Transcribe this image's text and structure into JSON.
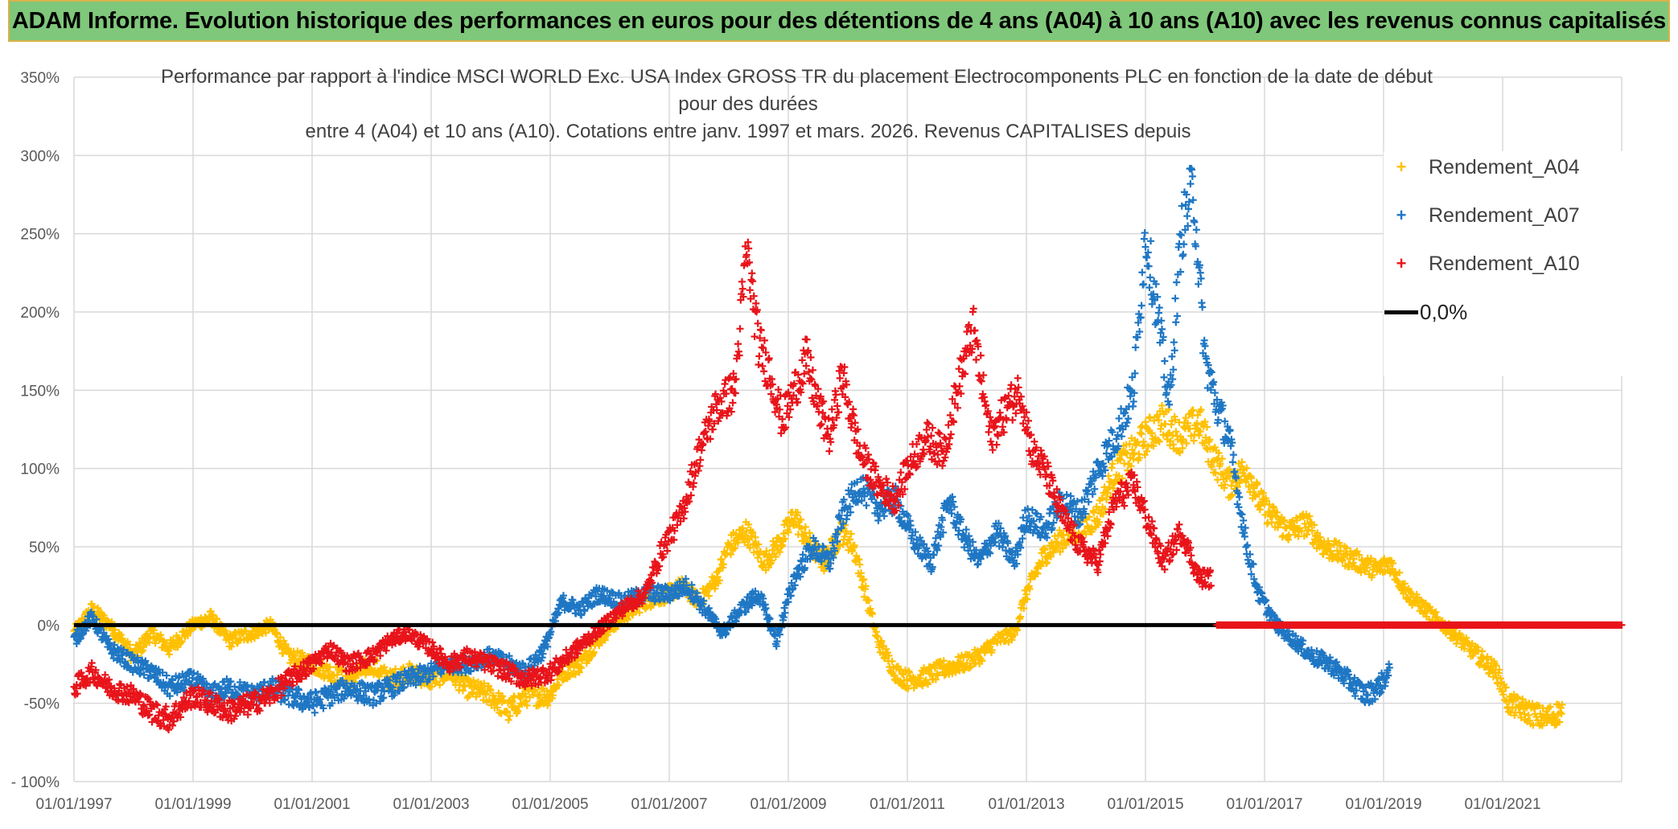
{
  "banner": {
    "title": "ADAM Informe. Evolution historique des performances en euros pour des détentions de 4 ans (A04) à 10 ans (A10) avec les revenus connus capitalisés"
  },
  "colors": {
    "banner_bg": "#7fc77a",
    "banner_border": "#d9b24a",
    "A04": "#ffc000",
    "A07": "#1f77c4",
    "A10": "#e8141a",
    "zero_line": "#000000",
    "grid": "#d9d9d9"
  },
  "chart_data": {
    "type": "scatter",
    "title_lines": [
      "Performance par rapport à l'indice MSCI WORLD Exc. USA Index GROSS TR  du placement Electrocomponents PLC en fonction de la date de début",
      "pour des durées",
      "entre 4 (A04) et 10 ans (A10). Cotations entre janv. 1997 et mars. 2026. Revenus CAPITALISES depuis"
    ],
    "xlabel": "",
    "ylabel": "",
    "xlim": [
      1997.0,
      2023.0
    ],
    "ylim": [
      -100,
      350
    ],
    "y_ticks": [
      -100,
      -50,
      0,
      50,
      100,
      150,
      200,
      250,
      300,
      350
    ],
    "y_tick_labels": [
      "- 100%",
      "-50%",
      "0%",
      "50%",
      "100%",
      "150%",
      "200%",
      "250%",
      "300%",
      "350%"
    ],
    "x_ticks": [
      1997,
      1999,
      2001,
      2003,
      2005,
      2007,
      2009,
      2011,
      2013,
      2015,
      2017,
      2019,
      2021
    ],
    "x_tick_labels": [
      "01/01/1997",
      "01/01/1999",
      "01/01/2001",
      "01/01/2003",
      "01/01/2005",
      "01/01/2007",
      "01/01/2009",
      "01/01/2011",
      "01/01/2013",
      "01/01/2015",
      "01/01/2017",
      "01/01/2019",
      "01/01/2021"
    ],
    "grid": true,
    "legend_position": "top-right",
    "series": [
      {
        "name": "Rendement_A04",
        "marker": "+",
        "points": [
          [
            1997.0,
            -5
          ],
          [
            1997.3,
            10
          ],
          [
            1997.6,
            0
          ],
          [
            1998.0,
            -20
          ],
          [
            1998.3,
            -5
          ],
          [
            1998.6,
            -15
          ],
          [
            1999.0,
            0
          ],
          [
            1999.3,
            5
          ],
          [
            1999.6,
            -10
          ],
          [
            2000.0,
            -5
          ],
          [
            2000.3,
            0
          ],
          [
            2000.6,
            -20
          ],
          [
            2001.0,
            -25
          ],
          [
            2001.3,
            -30
          ],
          [
            2001.6,
            -35
          ],
          [
            2002.0,
            -25
          ],
          [
            2002.3,
            -35
          ],
          [
            2002.6,
            -30
          ],
          [
            2003.0,
            -35
          ],
          [
            2003.3,
            -30
          ],
          [
            2003.6,
            -40
          ],
          [
            2004.0,
            -45
          ],
          [
            2004.3,
            -55
          ],
          [
            2004.6,
            -45
          ],
          [
            2005.0,
            -45
          ],
          [
            2005.2,
            -30
          ],
          [
            2005.5,
            -25
          ],
          [
            2005.8,
            -10
          ],
          [
            2006.2,
            5
          ],
          [
            2006.6,
            15
          ],
          [
            2007.0,
            20
          ],
          [
            2007.2,
            25
          ],
          [
            2007.5,
            15
          ],
          [
            2007.8,
            30
          ],
          [
            2008.0,
            50
          ],
          [
            2008.3,
            60
          ],
          [
            2008.6,
            40
          ],
          [
            2008.9,
            55
          ],
          [
            2009.1,
            70
          ],
          [
            2009.3,
            55
          ],
          [
            2009.6,
            40
          ],
          [
            2009.9,
            60
          ],
          [
            2010.1,
            50
          ],
          [
            2010.3,
            20
          ],
          [
            2010.5,
            -10
          ],
          [
            2010.8,
            -30
          ],
          [
            2011.0,
            -35
          ],
          [
            2011.3,
            -33
          ],
          [
            2011.6,
            -28
          ],
          [
            2011.9,
            -25
          ],
          [
            2012.2,
            -20
          ],
          [
            2012.5,
            -10
          ],
          [
            2012.8,
            -5
          ],
          [
            2013.0,
            20
          ],
          [
            2013.3,
            45
          ],
          [
            2013.6,
            55
          ],
          [
            2013.9,
            60
          ],
          [
            2014.2,
            70
          ],
          [
            2014.5,
            100
          ],
          [
            2014.8,
            110
          ],
          [
            2015.0,
            120
          ],
          [
            2015.3,
            130
          ],
          [
            2015.6,
            120
          ],
          [
            2015.9,
            130
          ],
          [
            2016.1,
            110
          ],
          [
            2016.4,
            90
          ],
          [
            2016.7,
            100
          ],
          [
            2016.9,
            80
          ],
          [
            2017.1,
            70
          ],
          [
            2017.4,
            60
          ],
          [
            2017.7,
            65
          ],
          [
            2018.0,
            50
          ],
          [
            2018.3,
            45
          ],
          [
            2018.6,
            40
          ],
          [
            2018.9,
            35
          ],
          [
            2019.1,
            40
          ],
          [
            2019.4,
            20
          ],
          [
            2019.7,
            10
          ],
          [
            2020.0,
            0
          ],
          [
            2020.3,
            -10
          ],
          [
            2020.6,
            -20
          ],
          [
            2020.9,
            -30
          ],
          [
            2021.1,
            -50
          ],
          [
            2021.4,
            -55
          ],
          [
            2021.7,
            -60
          ],
          [
            2022.0,
            -55
          ]
        ]
      },
      {
        "name": "Rendement_A07",
        "marker": "+",
        "points": [
          [
            1997.0,
            -10
          ],
          [
            1997.3,
            5
          ],
          [
            1997.6,
            -15
          ],
          [
            1998.0,
            -25
          ],
          [
            1998.3,
            -30
          ],
          [
            1998.6,
            -40
          ],
          [
            1999.0,
            -35
          ],
          [
            1999.3,
            -45
          ],
          [
            1999.6,
            -40
          ],
          [
            2000.0,
            -45
          ],
          [
            2000.3,
            -40
          ],
          [
            2000.6,
            -45
          ],
          [
            2001.0,
            -50
          ],
          [
            2001.3,
            -45
          ],
          [
            2001.6,
            -40
          ],
          [
            2002.0,
            -45
          ],
          [
            2002.3,
            -40
          ],
          [
            2002.6,
            -35
          ],
          [
            2003.0,
            -30
          ],
          [
            2003.3,
            -25
          ],
          [
            2003.6,
            -25
          ],
          [
            2004.0,
            -20
          ],
          [
            2004.3,
            -25
          ],
          [
            2004.6,
            -30
          ],
          [
            2004.9,
            -15
          ],
          [
            2005.2,
            15
          ],
          [
            2005.5,
            10
          ],
          [
            2005.8,
            20
          ],
          [
            2006.2,
            15
          ],
          [
            2006.6,
            20
          ],
          [
            2007.0,
            20
          ],
          [
            2007.3,
            25
          ],
          [
            2007.6,
            10
          ],
          [
            2007.9,
            -5
          ],
          [
            2008.2,
            10
          ],
          [
            2008.5,
            20
          ],
          [
            2008.8,
            -10
          ],
          [
            2009.1,
            30
          ],
          [
            2009.4,
            50
          ],
          [
            2009.7,
            40
          ],
          [
            2009.9,
            70
          ],
          [
            2010.2,
            90
          ],
          [
            2010.5,
            75
          ],
          [
            2010.8,
            80
          ],
          [
            2011.1,
            55
          ],
          [
            2011.4,
            40
          ],
          [
            2011.7,
            80
          ],
          [
            2011.9,
            60
          ],
          [
            2012.2,
            40
          ],
          [
            2012.5,
            60
          ],
          [
            2012.8,
            40
          ],
          [
            2013.0,
            70
          ],
          [
            2013.3,
            60
          ],
          [
            2013.6,
            80
          ],
          [
            2013.9,
            70
          ],
          [
            2014.2,
            100
          ],
          [
            2014.5,
            120
          ],
          [
            2014.8,
            150
          ],
          [
            2015.0,
            250
          ],
          [
            2015.2,
            200
          ],
          [
            2015.4,
            140
          ],
          [
            2015.6,
            250
          ],
          [
            2015.8,
            280
          ],
          [
            2016.0,
            170
          ],
          [
            2016.2,
            140
          ],
          [
            2016.4,
            120
          ],
          [
            2016.7,
            50
          ],
          [
            2016.9,
            20
          ],
          [
            2017.2,
            0
          ],
          [
            2017.5,
            -10
          ],
          [
            2017.8,
            -20
          ],
          [
            2018.1,
            -25
          ],
          [
            2018.4,
            -35
          ],
          [
            2018.7,
            -45
          ],
          [
            2018.9,
            -40
          ],
          [
            2019.1,
            -30
          ]
        ]
      },
      {
        "name": "Rendement_A10",
        "marker": "+",
        "points": [
          [
            1997.0,
            -40
          ],
          [
            1997.3,
            -30
          ],
          [
            1997.6,
            -40
          ],
          [
            1998.0,
            -45
          ],
          [
            1998.3,
            -55
          ],
          [
            1998.6,
            -60
          ],
          [
            1999.0,
            -45
          ],
          [
            1999.3,
            -50
          ],
          [
            1999.6,
            -55
          ],
          [
            2000.0,
            -50
          ],
          [
            2000.3,
            -45
          ],
          [
            2000.6,
            -35
          ],
          [
            2001.0,
            -25
          ],
          [
            2001.3,
            -15
          ],
          [
            2001.6,
            -25
          ],
          [
            2002.0,
            -20
          ],
          [
            2002.3,
            -10
          ],
          [
            2002.6,
            -5
          ],
          [
            2003.0,
            -15
          ],
          [
            2003.3,
            -25
          ],
          [
            2003.6,
            -20
          ],
          [
            2004.0,
            -25
          ],
          [
            2004.3,
            -30
          ],
          [
            2004.6,
            -35
          ],
          [
            2005.0,
            -30
          ],
          [
            2005.3,
            -20
          ],
          [
            2005.6,
            -10
          ],
          [
            2005.9,
            0
          ],
          [
            2006.2,
            10
          ],
          [
            2006.6,
            20
          ],
          [
            2006.9,
            50
          ],
          [
            2007.2,
            70
          ],
          [
            2007.5,
            110
          ],
          [
            2007.8,
            140
          ],
          [
            2008.1,
            150
          ],
          [
            2008.3,
            240
          ],
          [
            2008.5,
            180
          ],
          [
            2008.7,
            160
          ],
          [
            2008.9,
            130
          ],
          [
            2009.1,
            150
          ],
          [
            2009.3,
            170
          ],
          [
            2009.5,
            140
          ],
          [
            2009.7,
            120
          ],
          [
            2009.9,
            160
          ],
          [
            2010.2,
            110
          ],
          [
            2010.5,
            90
          ],
          [
            2010.8,
            80
          ],
          [
            2011.0,
            100
          ],
          [
            2011.3,
            120
          ],
          [
            2011.6,
            110
          ],
          [
            2011.9,
            160
          ],
          [
            2012.1,
            190
          ],
          [
            2012.4,
            120
          ],
          [
            2012.7,
            140
          ],
          [
            2012.9,
            150
          ],
          [
            2013.1,
            110
          ],
          [
            2013.3,
            100
          ],
          [
            2013.6,
            70
          ],
          [
            2013.9,
            50
          ],
          [
            2014.2,
            40
          ],
          [
            2014.5,
            80
          ],
          [
            2014.8,
            90
          ],
          [
            2015.0,
            70
          ],
          [
            2015.3,
            40
          ],
          [
            2015.6,
            60
          ],
          [
            2015.9,
            30
          ],
          [
            2016.1,
            30
          ]
        ]
      }
    ],
    "zero_series": {
      "name": "Rendement_A10",
      "x_range": [
        2016.2,
        2023.0
      ],
      "value": 0
    },
    "reference_line": {
      "name": "0,0%",
      "value": 0
    }
  }
}
